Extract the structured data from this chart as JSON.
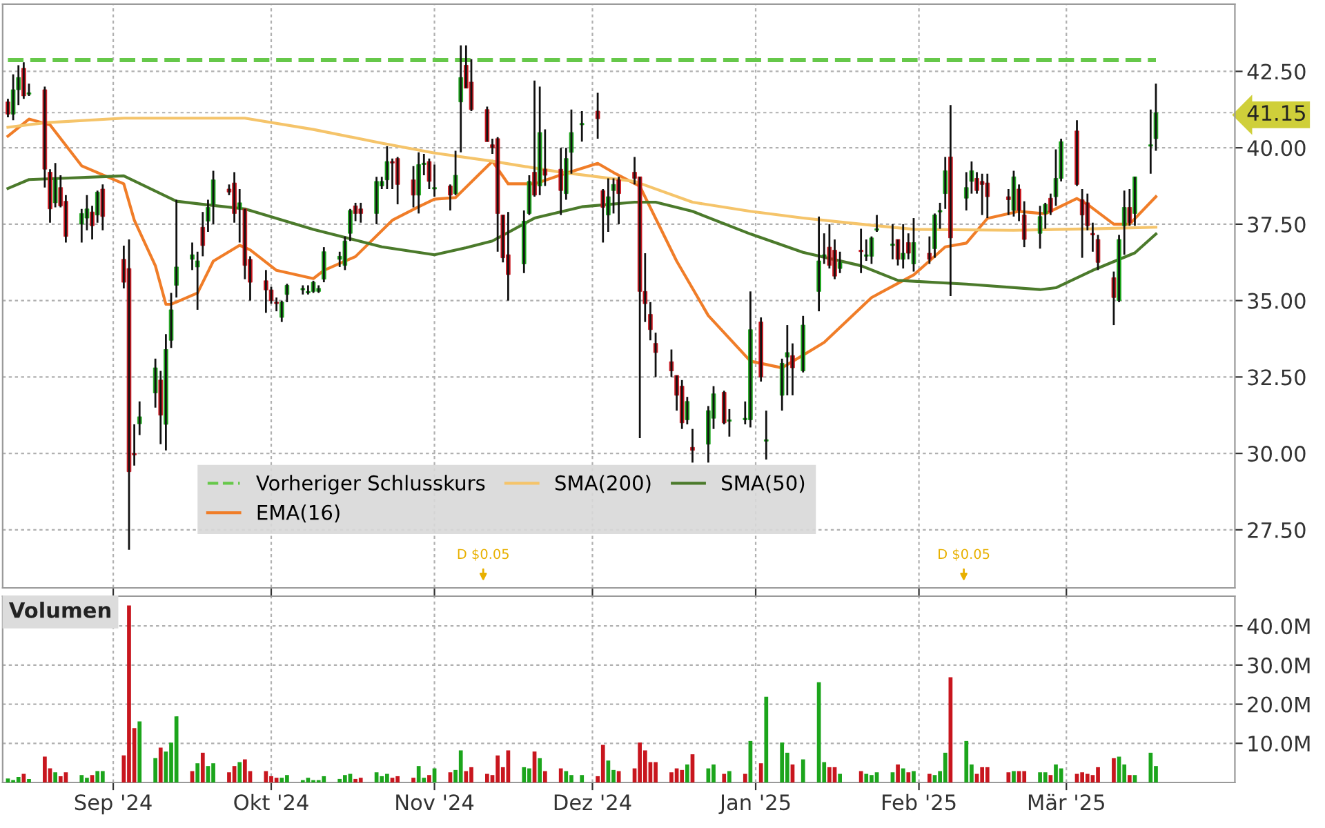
{
  "chart_data": [
    {
      "type": "candlestick",
      "x": [
        "2024-08-12",
        "2024-08-13",
        "2024-08-14",
        "2024-08-15",
        "2024-08-16",
        "2024-08-19",
        "2024-08-20",
        "2024-08-21",
        "2024-08-22",
        "2024-08-23",
        "2024-08-26",
        "2024-08-27",
        "2024-08-28",
        "2024-08-29",
        "2024-08-30",
        "2024-09-03",
        "2024-09-04",
        "2024-09-05",
        "2024-09-06",
        "2024-09-09",
        "2024-09-10",
        "2024-09-11",
        "2024-09-12",
        "2024-09-13",
        "2024-09-16",
        "2024-09-17",
        "2024-09-18",
        "2024-09-19",
        "2024-09-20",
        "2024-09-23",
        "2024-09-24",
        "2024-09-25",
        "2024-09-26",
        "2024-09-27",
        "2024-09-30",
        "2024-10-01",
        "2024-10-02",
        "2024-10-03",
        "2024-10-04",
        "2024-10-07",
        "2024-10-08",
        "2024-10-09",
        "2024-10-10",
        "2024-10-11",
        "2024-10-14",
        "2024-10-15",
        "2024-10-16",
        "2024-10-17",
        "2024-10-18",
        "2024-10-21",
        "2024-10-22",
        "2024-10-23",
        "2024-10-24",
        "2024-10-25",
        "2024-10-28",
        "2024-10-29",
        "2024-10-30",
        "2024-10-31",
        "2024-11-01",
        "2024-11-04",
        "2024-11-05",
        "2024-11-06",
        "2024-11-07",
        "2024-11-08",
        "2024-11-11",
        "2024-11-12",
        "2024-11-13",
        "2024-11-14",
        "2024-11-15",
        "2024-11-18",
        "2024-11-19",
        "2024-11-20",
        "2024-11-21",
        "2024-11-22",
        "2024-11-25",
        "2024-11-26",
        "2024-11-27",
        "2024-11-29",
        "2024-12-02",
        "2024-12-03",
        "2024-12-04",
        "2024-12-05",
        "2024-12-06",
        "2024-12-09",
        "2024-12-10",
        "2024-12-11",
        "2024-12-12",
        "2024-12-13",
        "2024-12-16",
        "2024-12-17",
        "2024-12-18",
        "2024-12-19",
        "2024-12-20",
        "2024-12-23",
        "2024-12-24",
        "2024-12-26",
        "2024-12-27",
        "2024-12-30",
        "2024-12-31",
        "2025-01-02",
        "2025-01-03",
        "2025-01-06",
        "2025-01-07",
        "2025-01-08",
        "2025-01-10",
        "2025-01-13",
        "2025-01-14",
        "2025-01-15",
        "2025-01-16",
        "2025-01-17",
        "2025-01-21",
        "2025-01-22",
        "2025-01-23",
        "2025-01-24",
        "2025-01-27",
        "2025-01-28",
        "2025-01-29",
        "2025-01-30",
        "2025-01-31",
        "2025-02-03",
        "2025-02-04",
        "2025-02-05",
        "2025-02-06",
        "2025-02-07",
        "2025-02-10",
        "2025-02-11",
        "2025-02-12",
        "2025-02-13",
        "2025-02-14",
        "2025-02-18",
        "2025-02-19",
        "2025-02-20",
        "2025-02-21",
        "2025-02-24",
        "2025-02-25",
        "2025-02-26",
        "2025-02-27",
        "2025-02-28",
        "2025-03-03",
        "2025-03-04",
        "2025-03-05",
        "2025-03-06",
        "2025-03-07",
        "2025-03-10",
        "2025-03-11",
        "2025-03-12",
        "2025-03-13",
        "2025-03-14",
        "2025-03-17",
        "2025-03-18"
      ],
      "ohlc": [
        [
          41.5,
          41.6,
          41.0,
          41.1
        ],
        [
          41.1,
          42.4,
          40.9,
          41.9
        ],
        [
          41.9,
          42.7,
          41.4,
          42.3
        ],
        [
          42.6,
          42.8,
          41.6,
          41.7
        ],
        [
          41.75,
          42.1,
          41.7,
          41.8
        ],
        [
          41.9,
          42.0,
          38.7,
          39.3
        ],
        [
          39.2,
          39.3,
          37.55,
          38.0
        ],
        [
          38.2,
          39.5,
          38.05,
          39.0
        ],
        [
          38.7,
          39.1,
          38.05,
          38.1
        ],
        [
          38.25,
          38.45,
          36.9,
          37.1
        ],
        [
          37.5,
          38.0,
          36.9,
          37.85
        ],
        [
          37.7,
          38.45,
          37.3,
          38.0
        ],
        [
          37.9,
          38.1,
          37.0,
          37.45
        ],
        [
          37.8,
          38.6,
          37.55,
          38.55
        ],
        [
          38.65,
          38.8,
          37.3,
          37.75
        ],
        [
          36.35,
          36.8,
          35.4,
          35.6
        ],
        [
          36.05,
          37.0,
          26.85,
          29.4
        ],
        [
          30.0,
          30.95,
          29.6,
          29.95
        ],
        [
          30.97,
          31.7,
          30.6,
          31.2
        ],
        [
          31.98,
          33.1,
          31.5,
          32.8
        ],
        [
          32.4,
          32.7,
          30.3,
          31.25
        ],
        [
          30.95,
          33.9,
          30.1,
          33.4
        ],
        [
          33.7,
          35.25,
          33.45,
          34.7
        ],
        [
          35.5,
          38.3,
          35.1,
          36.1
        ],
        [
          36.35,
          36.9,
          36.0,
          36.5
        ],
        [
          36.1,
          36.6,
          34.7,
          36.3
        ],
        [
          37.4,
          37.9,
          36.45,
          36.8
        ],
        [
          37.6,
          38.3,
          37.25,
          38.05
        ],
        [
          38.15,
          39.25,
          37.5,
          38.95
        ],
        [
          38.65,
          38.8,
          38.45,
          38.55
        ],
        [
          38.85,
          39.2,
          37.55,
          37.85
        ],
        [
          38.0,
          38.65,
          36.9,
          38.2
        ],
        [
          38.0,
          38.0,
          35.7,
          36.15
        ],
        [
          36.35,
          36.45,
          35.0,
          35.6
        ],
        [
          35.65,
          36.0,
          34.6,
          35.35
        ],
        [
          35.35,
          35.45,
          34.9,
          35.0
        ],
        [
          34.95,
          35.1,
          34.65,
          34.9
        ],
        [
          34.45,
          35.0,
          34.3,
          34.95
        ],
        [
          35.2,
          35.55,
          34.95,
          35.5
        ],
        [
          35.35,
          35.5,
          35.2,
          35.4
        ],
        [
          35.25,
          35.5,
          35.2,
          35.3
        ],
        [
          35.3,
          35.65,
          35.25,
          35.6
        ],
        [
          35.3,
          35.5,
          35.25,
          35.4
        ],
        [
          35.7,
          36.75,
          35.6,
          36.6
        ],
        [
          36.35,
          36.6,
          36.1,
          36.45
        ],
        [
          36.15,
          37.1,
          36.0,
          36.95
        ],
        [
          37.2,
          38.0,
          36.95,
          37.95
        ],
        [
          38.1,
          38.2,
          37.6,
          37.85
        ],
        [
          38.0,
          38.2,
          37.55,
          37.85
        ],
        [
          37.85,
          39.05,
          37.5,
          38.9
        ],
        [
          38.75,
          39.05,
          38.65,
          38.9
        ],
        [
          38.95,
          40.05,
          38.65,
          39.55
        ],
        [
          39.55,
          39.65,
          38.65,
          39.5
        ],
        [
          39.65,
          39.7,
          38.15,
          38.8
        ],
        [
          38.95,
          39.4,
          38.05,
          38.45
        ],
        [
          38.45,
          39.85,
          37.85,
          39.45
        ],
        [
          39.45,
          39.8,
          39.1,
          39.5
        ],
        [
          39.55,
          39.65,
          38.65,
          38.9
        ],
        [
          38.65,
          39.45,
          38.4,
          38.7
        ],
        [
          38.75,
          38.8,
          37.95,
          38.45
        ],
        [
          38.5,
          39.9,
          38.45,
          39.1
        ],
        [
          41.5,
          43.35,
          39.85,
          42.3
        ],
        [
          42.7,
          43.35,
          41.95,
          41.95
        ],
        [
          42.15,
          42.9,
          41.2,
          41.25
        ],
        [
          41.25,
          41.35,
          40.2,
          40.2
        ],
        [
          40.1,
          40.3,
          39.8,
          40.0
        ],
        [
          40.3,
          40.35,
          36.6,
          37.85
        ],
        [
          37.8,
          37.8,
          36.25,
          36.4
        ],
        [
          36.5,
          37.9,
          35.0,
          35.85
        ],
        [
          36.2,
          37.95,
          35.9,
          37.6
        ],
        [
          37.85,
          39.1,
          37.8,
          38.9
        ],
        [
          39.2,
          42.2,
          38.4,
          38.45
        ],
        [
          38.75,
          42.0,
          38.45,
          40.5
        ],
        [
          39.3,
          40.6,
          38.75,
          39.1
        ],
        [
          39.3,
          40.0,
          37.8,
          38.6
        ],
        [
          38.5,
          40.0,
          38.3,
          39.65
        ],
        [
          39.85,
          41.25,
          39.15,
          40.5
        ],
        [
          40.75,
          41.2,
          40.2,
          40.8
        ],
        [
          41.2,
          41.8,
          40.3,
          40.95
        ],
        [
          38.6,
          38.65,
          36.9,
          38.05
        ],
        [
          37.8,
          39.0,
          37.25,
          38.4
        ],
        [
          38.6,
          39.0,
          37.85,
          38.8
        ],
        [
          38.95,
          39.05,
          37.5,
          38.5
        ],
        [
          39.2,
          39.7,
          38.8,
          39.0
        ],
        [
          39.05,
          39.05,
          30.5,
          35.3
        ],
        [
          35.3,
          36.55,
          34.3,
          34.9
        ],
        [
          34.55,
          34.95,
          33.7,
          34.05
        ],
        [
          33.6,
          33.95,
          32.5,
          33.3
        ],
        [
          33.0,
          33.4,
          32.5,
          32.7
        ],
        [
          32.55,
          32.55,
          31.4,
          31.9
        ],
        [
          32.2,
          32.4,
          30.8,
          31.0
        ],
        [
          31.1,
          31.85,
          30.95,
          31.7
        ],
        [
          30.2,
          30.8,
          29.7,
          30.1
        ],
        [
          30.3,
          31.55,
          29.7,
          31.4
        ],
        [
          31.15,
          32.2,
          30.8,
          31.95
        ],
        [
          32.0,
          32.05,
          30.95,
          31.0
        ],
        [
          31.05,
          31.45,
          30.55,
          31.1
        ],
        [
          31.1,
          31.7,
          30.95,
          31.15
        ],
        [
          31.1,
          35.3,
          30.85,
          34.05
        ],
        [
          34.3,
          34.45,
          32.35,
          32.5
        ],
        [
          30.4,
          31.4,
          29.8,
          30.45
        ],
        [
          31.9,
          33.1,
          31.4,
          32.95
        ],
        [
          33.15,
          34.2,
          31.9,
          33.3
        ],
        [
          33.2,
          33.6,
          31.9,
          32.8
        ],
        [
          32.7,
          34.5,
          32.65,
          34.2
        ],
        [
          35.3,
          37.75,
          34.65,
          36.3
        ],
        [
          36.45,
          37.2,
          36.2,
          36.5
        ],
        [
          36.75,
          37.5,
          36.05,
          36.15
        ],
        [
          36.65,
          37.0,
          35.7,
          35.8
        ],
        [
          36.05,
          36.6,
          35.9,
          36.25
        ],
        [
          36.65,
          37.35,
          35.9,
          36.6
        ],
        [
          36.45,
          37.0,
          36.3,
          36.5
        ],
        [
          36.45,
          37.1,
          36.2,
          37.05
        ],
        [
          37.3,
          37.8,
          37.25,
          37.35
        ],
        [
          36.8,
          37.5,
          36.35,
          36.85
        ],
        [
          37.0,
          37.0,
          36.15,
          36.35
        ],
        [
          36.35,
          37.5,
          36.05,
          36.55
        ],
        [
          36.9,
          37.2,
          36.35,
          36.55
        ],
        [
          36.2,
          37.7,
          35.95,
          36.9
        ],
        [
          36.55,
          37.1,
          36.2,
          36.35
        ],
        [
          36.7,
          37.85,
          36.4,
          37.8
        ],
        [
          37.9,
          38.2,
          37.35,
          37.95
        ],
        [
          38.5,
          39.7,
          38.0,
          39.25
        ],
        [
          39.7,
          41.4,
          35.15,
          37.05
        ],
        [
          38.35,
          39.2,
          37.95,
          38.7
        ],
        [
          38.9,
          39.55,
          38.5,
          39.25
        ],
        [
          39.0,
          39.2,
          38.5,
          38.6
        ],
        [
          38.9,
          39.15,
          37.8,
          38.8
        ],
        [
          38.85,
          39.15,
          37.7,
          38.4
        ],
        [
          38.4,
          38.65,
          37.8,
          38.3
        ],
        [
          37.95,
          39.25,
          37.75,
          39.05
        ],
        [
          38.65,
          38.8,
          37.6,
          37.95
        ],
        [
          37.8,
          38.25,
          36.75,
          37.0
        ],
        [
          37.2,
          38.1,
          36.7,
          37.75
        ],
        [
          37.85,
          38.2,
          37.35,
          38.15
        ],
        [
          38.35,
          38.5,
          37.8,
          37.9
        ],
        [
          38.4,
          39.95,
          38.1,
          39.0
        ],
        [
          39.0,
          40.3,
          38.9,
          40.2
        ],
        [
          40.55,
          40.9,
          38.75,
          38.8
        ],
        [
          38.3,
          38.65,
          36.4,
          37.8
        ],
        [
          38.2,
          38.5,
          37.3,
          37.45
        ],
        [
          37.2,
          37.55,
          36.6,
          37.15
        ],
        [
          37.0,
          37.15,
          36.0,
          36.25
        ],
        [
          35.75,
          35.95,
          34.2,
          35.1
        ],
        [
          35.0,
          37.15,
          34.95,
          37.0
        ],
        [
          37.45,
          38.6,
          36.5,
          38.05
        ],
        [
          38.05,
          38.65,
          37.45,
          37.55
        ],
        [
          37.85,
          39.05,
          37.45,
          39.05
        ],
        [
          40.05,
          41.25,
          39.15,
          40.1
        ],
        [
          40.3,
          42.1,
          39.9,
          41.15
        ]
      ],
      "colors": [
        "#c8161e",
        "#1ca51c",
        "#1ca51c",
        "#c8161e",
        "#1ca51c",
        "#c8161e",
        "#c8161e",
        "#1ca51c",
        "#c8161e",
        "#c8161e",
        "#1ca51c",
        "#1ca51c",
        "#c8161e",
        "#1ca51c",
        "#c8161e",
        "#c8161e",
        "#c8161e",
        "#c8161e",
        "#1ca51c",
        "#1ca51c",
        "#c8161e",
        "#1ca51c",
        "#1ca51c",
        "#1ca51c",
        "#1ca51c",
        "#1ca51c",
        "#c8161e",
        "#1ca51c",
        "#1ca51c",
        "#c8161e",
        "#c8161e",
        "#1ca51c",
        "#c8161e",
        "#c8161e",
        "#c8161e",
        "#c8161e",
        "#c8161e",
        "#1ca51c",
        "#1ca51c",
        "#1ca51c",
        "#1ca51c",
        "#1ca51c",
        "#1ca51c",
        "#1ca51c",
        "#1ca51c",
        "#1ca51c",
        "#1ca51c",
        "#c8161e",
        "#c8161e",
        "#1ca51c",
        "#1ca51c",
        "#1ca51c",
        "#c8161e",
        "#c8161e",
        "#c8161e",
        "#1ca51c",
        "#1ca51c",
        "#c8161e",
        "#1ca51c",
        "#c8161e",
        "#1ca51c",
        "#1ca51c",
        "#c8161e",
        "#c8161e",
        "#c8161e",
        "#c8161e",
        "#c8161e",
        "#c8161e",
        "#c8161e",
        "#1ca51c",
        "#1ca51c",
        "#c8161e",
        "#1ca51c",
        "#c8161e",
        "#c8161e",
        "#1ca51c",
        "#1ca51c",
        "#1ca51c",
        "#c8161e",
        "#c8161e",
        "#1ca51c",
        "#1ca51c",
        "#c8161e",
        "#c8161e",
        "#c8161e",
        "#c8161e",
        "#c8161e",
        "#c8161e",
        "#c8161e",
        "#c8161e",
        "#c8161e",
        "#1ca51c",
        "#c8161e",
        "#1ca51c",
        "#1ca51c",
        "#c8161e",
        "#1ca51c",
        "#1ca51c",
        "#1ca51c",
        "#c8161e",
        "#1ca51c",
        "#1ca51c",
        "#1ca51c",
        "#c8161e",
        "#1ca51c",
        "#1ca51c",
        "#1ca51c",
        "#c8161e",
        "#c8161e",
        "#1ca51c",
        "#c8161e",
        "#1ca51c",
        "#1ca51c",
        "#1ca51c",
        "#1ca51c",
        "#c8161e",
        "#1ca51c",
        "#c8161e",
        "#1ca51c",
        "#c8161e",
        "#1ca51c",
        "#1ca51c",
        "#1ca51c",
        "#c8161e",
        "#1ca51c",
        "#1ca51c",
        "#c8161e",
        "#c8161e",
        "#c8161e",
        "#c8161e",
        "#1ca51c",
        "#c8161e",
        "#c8161e",
        "#1ca51c",
        "#1ca51c",
        "#c8161e",
        "#1ca51c",
        "#1ca51c",
        "#c8161e",
        "#c8161e",
        "#c8161e",
        "#c8161e",
        "#c8161e",
        "#c8161e",
        "#1ca51c",
        "#1ca51c",
        "#c8161e",
        "#1ca51c",
        "#1ca51c",
        "#1ca51c"
      ],
      "series": [
        {
          "type": "line",
          "name": "EMA(16)",
          "color": "#f07d28",
          "x": [
            "2024-08-12",
            "2024-08-16",
            "2024-08-20",
            "2024-08-26",
            "2024-09-03",
            "2024-09-05",
            "2024-09-09",
            "2024-09-11",
            "2024-09-12",
            "2024-09-17",
            "2024-09-20",
            "2024-09-25",
            "2024-09-27",
            "2024-10-02",
            "2024-10-09",
            "2024-10-11",
            "2024-10-17",
            "2024-10-24",
            "2024-10-29",
            "2024-11-01",
            "2024-11-05",
            "2024-11-12",
            "2024-11-15",
            "2024-11-20",
            "2024-11-25",
            "2024-12-02",
            "2024-12-05",
            "2024-12-10",
            "2024-12-17",
            "2024-12-23",
            "2024-12-31",
            "2025-01-06",
            "2025-01-14",
            "2025-01-23",
            "2025-01-31",
            "2025-02-06",
            "2025-02-10",
            "2025-02-14",
            "2025-02-20",
            "2025-02-25",
            "2025-03-03",
            "2025-03-05",
            "2025-03-10",
            "2025-03-13",
            "2025-03-18"
          ],
          "values": [
            40.38,
            40.94,
            40.75,
            39.41,
            38.82,
            37.63,
            36.14,
            34.88,
            34.88,
            35.25,
            36.29,
            36.81,
            36.66,
            35.99,
            35.72,
            35.99,
            36.44,
            37.63,
            38.07,
            38.32,
            38.37,
            39.56,
            38.82,
            38.82,
            39.11,
            39.49,
            39.19,
            38.74,
            36.29,
            34.51,
            33.02,
            32.8,
            33.63,
            35.1,
            35.84,
            36.76,
            36.88,
            37.69,
            37.92,
            37.84,
            38.34,
            38.15,
            37.5,
            37.5,
            38.4
          ]
        },
        {
          "type": "line",
          "name": "SMA(200)",
          "color": "#f5c46a",
          "x": [
            "2024-08-12",
            "2024-08-19",
            "2024-09-03",
            "2024-09-26",
            "2024-10-09",
            "2024-10-22",
            "2024-11-01",
            "2024-11-12",
            "2024-11-25",
            "2024-12-09",
            "2024-12-20",
            "2024-12-31",
            "2025-01-10",
            "2025-01-21",
            "2025-01-31",
            "2025-02-19",
            "2025-03-06",
            "2025-03-18"
          ],
          "values": [
            40.67,
            40.82,
            40.97,
            40.97,
            40.6,
            40.15,
            39.83,
            39.56,
            39.2,
            38.9,
            38.22,
            37.92,
            37.7,
            37.5,
            37.33,
            37.3,
            37.35,
            37.4
          ]
        },
        {
          "type": "line",
          "name": "SMA(50)",
          "color": "#4b7a2b",
          "x": [
            "2024-08-12",
            "2024-08-16",
            "2024-09-03",
            "2024-09-13",
            "2024-09-18",
            "2024-09-26",
            "2024-10-09",
            "2024-10-22",
            "2024-11-01",
            "2024-11-07",
            "2024-11-12",
            "2024-11-20",
            "2024-11-29",
            "2024-12-09",
            "2024-12-13",
            "2024-12-20",
            "2024-12-31",
            "2025-01-10",
            "2025-01-21",
            "2025-01-28",
            "2025-02-10",
            "2025-02-24",
            "2025-02-27",
            "2025-03-06",
            "2025-03-14",
            "2025-03-18"
          ],
          "values": [
            38.67,
            38.96,
            39.08,
            38.25,
            38.15,
            38.0,
            37.33,
            36.76,
            36.5,
            36.73,
            36.95,
            37.7,
            38.07,
            38.22,
            38.22,
            37.92,
            37.18,
            36.58,
            36.14,
            35.66,
            35.54,
            35.36,
            35.42,
            35.99,
            36.56,
            37.18
          ]
        }
      ],
      "ref_lines": [
        {
          "axis": "y",
          "value": 42.87,
          "label": "Vorheriger Schlusskurs",
          "color": "#66c84a",
          "line_style": "dashed"
        }
      ],
      "annotations": [
        "D $0.05",
        "D $0.05"
      ],
      "xlim": [
        "2024-08-11",
        "2025-04-02"
      ],
      "xticks": [
        {
          "value": "2024-09-01",
          "label": null
        },
        {
          "value": "2024-10-01",
          "label": null
        },
        {
          "value": "2024-11-01",
          "label": null
        },
        {
          "value": "2024-12-01",
          "label": null
        },
        {
          "value": "2025-01-01",
          "label": null
        },
        {
          "value": "2025-02-01",
          "label": null
        },
        {
          "value": "2025-03-01",
          "label": null
        }
      ],
      "ylim": [
        25.6,
        44.7
      ],
      "yticks": [
        {
          "value": 27.5,
          "label": "27.50"
        },
        {
          "value": 30,
          "label": "30.00"
        },
        {
          "value": 32.5,
          "label": "32.50"
        },
        {
          "value": 35,
          "label": "35.00"
        },
        {
          "value": 37.5,
          "label": "37.50"
        },
        {
          "value": 40,
          "label": "40.00"
        },
        {
          "value": 41.15,
          "label": "41.15"
        },
        {
          "value": 42.5,
          "label": "42.50"
        }
      ],
      "tick_labels": "y",
      "grid": true,
      "legend": "bottom left",
      "line_style": "solid"
    },
    {
      "type": "bar",
      "title": "Volumen",
      "x": [
        "2024-08-12",
        "2024-08-13",
        "2024-08-14",
        "2024-08-15",
        "2024-08-16",
        "2024-08-19",
        "2024-08-20",
        "2024-08-21",
        "2024-08-22",
        "2024-08-23",
        "2024-08-26",
        "2024-08-27",
        "2024-08-28",
        "2024-08-29",
        "2024-08-30",
        "2024-09-03",
        "2024-09-04",
        "2024-09-05",
        "2024-09-06",
        "2024-09-09",
        "2024-09-10",
        "2024-09-11",
        "2024-09-12",
        "2024-09-13",
        "2024-09-16",
        "2024-09-17",
        "2024-09-18",
        "2024-09-19",
        "2024-09-20",
        "2024-09-23",
        "2024-09-24",
        "2024-09-25",
        "2024-09-26",
        "2024-09-27",
        "2024-09-30",
        "2024-10-01",
        "2024-10-02",
        "2024-10-03",
        "2024-10-04",
        "2024-10-07",
        "2024-10-08",
        "2024-10-09",
        "2024-10-10",
        "2024-10-11",
        "2024-10-14",
        "2024-10-15",
        "2024-10-16",
        "2024-10-17",
        "2024-10-18",
        "2024-10-21",
        "2024-10-22",
        "2024-10-23",
        "2024-10-24",
        "2024-10-25",
        "2024-10-28",
        "2024-10-29",
        "2024-10-30",
        "2024-10-31",
        "2024-11-01",
        "2024-11-04",
        "2024-11-05",
        "2024-11-06",
        "2024-11-07",
        "2024-11-08",
        "2024-11-11",
        "2024-11-12",
        "2024-11-13",
        "2024-11-14",
        "2024-11-15",
        "2024-11-18",
        "2024-11-19",
        "2024-11-20",
        "2024-11-21",
        "2024-11-22",
        "2024-11-25",
        "2024-11-26",
        "2024-11-27",
        "2024-11-29",
        "2024-12-02",
        "2024-12-03",
        "2024-12-04",
        "2024-12-05",
        "2024-12-06",
        "2024-12-09",
        "2024-12-10",
        "2024-12-11",
        "2024-12-12",
        "2024-12-13",
        "2024-12-16",
        "2024-12-17",
        "2024-12-18",
        "2024-12-19",
        "2024-12-20",
        "2024-12-23",
        "2024-12-24",
        "2024-12-26",
        "2024-12-27",
        "2024-12-30",
        "2024-12-31",
        "2025-01-02",
        "2025-01-03",
        "2025-01-06",
        "2025-01-07",
        "2025-01-08",
        "2025-01-10",
        "2025-01-13",
        "2025-01-14",
        "2025-01-15",
        "2025-01-16",
        "2025-01-17",
        "2025-01-21",
        "2025-01-22",
        "2025-01-23",
        "2025-01-24",
        "2025-01-27",
        "2025-01-28",
        "2025-01-29",
        "2025-01-30",
        "2025-01-31",
        "2025-02-03",
        "2025-02-04",
        "2025-02-05",
        "2025-02-06",
        "2025-02-07",
        "2025-02-10",
        "2025-02-11",
        "2025-02-12",
        "2025-02-13",
        "2025-02-14",
        "2025-02-18",
        "2025-02-19",
        "2025-02-20",
        "2025-02-21",
        "2025-02-24",
        "2025-02-25",
        "2025-02-26",
        "2025-02-27",
        "2025-02-28",
        "2025-03-03",
        "2025-03-04",
        "2025-03-05",
        "2025-03-06",
        "2025-03-07",
        "2025-03-10",
        "2025-03-11",
        "2025-03-12",
        "2025-03-13",
        "2025-03-14",
        "2025-03-17",
        "2025-03-18"
      ],
      "values": [
        1.0,
        0.6,
        1.4,
        2.2,
        0.9,
        6.6,
        3.6,
        2.6,
        1.6,
        2.6,
        1.9,
        1.2,
        1.9,
        2.9,
        2.9,
        6.9,
        45.2,
        13.9,
        15.6,
        6.2,
        8.9,
        7.9,
        10.2,
        16.9,
        2.9,
        4.9,
        7.6,
        4.2,
        4.9,
        2.6,
        4.2,
        5.2,
        5.9,
        2.9,
        2.9,
        1.6,
        1.2,
        1.2,
        1.9,
        0.6,
        1.2,
        0.6,
        0.6,
        1.6,
        0.9,
        1.9,
        2.2,
        0.9,
        1.2,
        2.6,
        1.6,
        2.2,
        1.2,
        1.6,
        1.2,
        4.2,
        1.2,
        1.9,
        3.6,
        2.6,
        3.2,
        8.2,
        2.9,
        3.9,
        2.2,
        1.9,
        6.9,
        3.9,
        8.2,
        3.9,
        3.6,
        7.9,
        6.2,
        2.9,
        3.6,
        2.9,
        1.9,
        1.9,
        1.6,
        9.6,
        5.6,
        3.2,
        2.9,
        3.6,
        10.2,
        8.2,
        5.2,
        5.2,
        2.6,
        3.6,
        3.2,
        4.6,
        7.2,
        3.6,
        4.6,
        2.2,
        2.9,
        2.2,
        10.6,
        4.9,
        21.9,
        10.2,
        7.6,
        4.6,
        5.9,
        25.6,
        5.2,
        3.9,
        3.9,
        2.2,
        2.9,
        2.2,
        1.9,
        2.6,
        2.6,
        4.6,
        3.6,
        2.6,
        2.9,
        2.2,
        1.9,
        2.9,
        7.6,
        26.9,
        10.6,
        4.6,
        2.2,
        3.9,
        3.9,
        2.6,
        2.9,
        2.9,
        2.9,
        2.6,
        2.6,
        1.9,
        4.6,
        3.6,
        2.2,
        2.6,
        2.2,
        1.9,
        3.9,
        6.2,
        6.6,
        4.6,
        1.9,
        1.9,
        7.6,
        4.2
      ],
      "colors": [
        "#1ca51c",
        "#1ca51c",
        "#1ca51c",
        "#c8161e",
        "#1ca51c",
        "#c8161e",
        "#c8161e",
        "#1ca51c",
        "#c8161e",
        "#c8161e",
        "#1ca51c",
        "#1ca51c",
        "#c8161e",
        "#1ca51c",
        "#1ca51c",
        "#c8161e",
        "#c8161e",
        "#c8161e",
        "#1ca51c",
        "#1ca51c",
        "#c8161e",
        "#1ca51c",
        "#1ca51c",
        "#1ca51c",
        "#c8161e",
        "#1ca51c",
        "#c8161e",
        "#1ca51c",
        "#1ca51c",
        "#c8161e",
        "#c8161e",
        "#1ca51c",
        "#c8161e",
        "#c8161e",
        "#c8161e",
        "#c8161e",
        "#c8161e",
        "#1ca51c",
        "#1ca51c",
        "#1ca51c",
        "#1ca51c",
        "#1ca51c",
        "#1ca51c",
        "#1ca51c",
        "#1ca51c",
        "#1ca51c",
        "#1ca51c",
        "#c8161e",
        "#c8161e",
        "#1ca51c",
        "#1ca51c",
        "#1ca51c",
        "#c8161e",
        "#c8161e",
        "#c8161e",
        "#1ca51c",
        "#1ca51c",
        "#c8161e",
        "#1ca51c",
        "#c8161e",
        "#1ca51c",
        "#1ca51c",
        "#c8161e",
        "#c8161e",
        "#c8161e",
        "#c8161e",
        "#c8161e",
        "#c8161e",
        "#c8161e",
        "#1ca51c",
        "#1ca51c",
        "#c8161e",
        "#1ca51c",
        "#c8161e",
        "#c8161e",
        "#1ca51c",
        "#1ca51c",
        "#1ca51c",
        "#c8161e",
        "#c8161e",
        "#1ca51c",
        "#1ca51c",
        "#c8161e",
        "#c8161e",
        "#c8161e",
        "#c8161e",
        "#c8161e",
        "#c8161e",
        "#c8161e",
        "#c8161e",
        "#c8161e",
        "#1ca51c",
        "#c8161e",
        "#1ca51c",
        "#1ca51c",
        "#c8161e",
        "#1ca51c",
        "#c8161e",
        "#1ca51c",
        "#c8161e",
        "#1ca51c",
        "#1ca51c",
        "#1ca51c",
        "#c8161e",
        "#1ca51c",
        "#1ca51c",
        "#1ca51c",
        "#c8161e",
        "#c8161e",
        "#1ca51c",
        "#c8161e",
        "#1ca51c",
        "#1ca51c",
        "#1ca51c",
        "#1ca51c",
        "#c8161e",
        "#1ca51c",
        "#c8161e",
        "#1ca51c",
        "#c8161e",
        "#1ca51c",
        "#1ca51c",
        "#1ca51c",
        "#c8161e",
        "#1ca51c",
        "#1ca51c",
        "#c8161e",
        "#c8161e",
        "#c8161e",
        "#c8161e",
        "#1ca51c",
        "#c8161e",
        "#c8161e",
        "#1ca51c",
        "#1ca51c",
        "#c8161e",
        "#1ca51c",
        "#1ca51c",
        "#c8161e",
        "#c8161e",
        "#c8161e",
        "#c8161e",
        "#c8161e",
        "#c8161e",
        "#1ca51c",
        "#1ca51c",
        "#c8161e",
        "#1ca51c",
        "#1ca51c",
        "#1ca51c"
      ],
      "xlim": [
        "2024-08-11",
        "2025-04-02"
      ],
      "xticks": [
        {
          "value": "2024-09-01",
          "label": "Sep '24"
        },
        {
          "value": "2024-10-01",
          "label": "Okt '24"
        },
        {
          "value": "2024-11-01",
          "label": "Nov '24"
        },
        {
          "value": "2024-12-01",
          "label": "Dez '24"
        },
        {
          "value": "2025-01-01",
          "label": "Jan '25"
        },
        {
          "value": "2025-02-01",
          "label": "Feb '25"
        },
        {
          "value": "2025-03-01",
          "label": "Mär '25"
        }
      ],
      "ylim": [
        0,
        47.6
      ],
      "yticks": [
        {
          "value": 10,
          "label": "10.0M"
        },
        {
          "value": 20,
          "label": "20.0M"
        },
        {
          "value": 30,
          "label": "30.0M"
        },
        {
          "value": 40,
          "label": "40.0M"
        }
      ],
      "grid": true
    }
  ]
}
